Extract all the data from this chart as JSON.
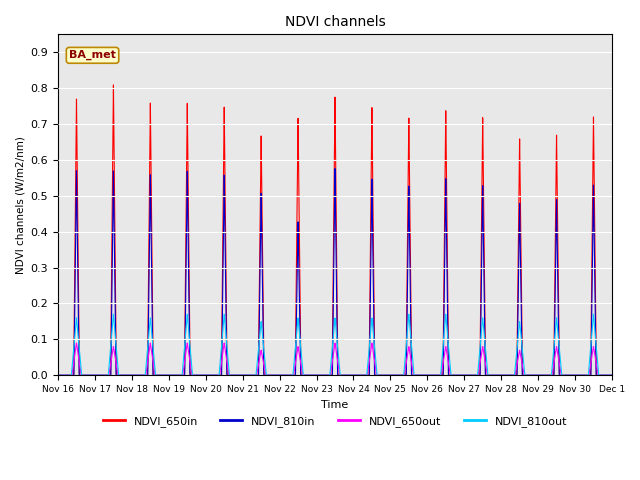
{
  "title": "NDVI channels",
  "ylabel": "NDVI channels (W/m2/nm)",
  "xlabel": "Time",
  "annotation": "BA_met",
  "ylim": [
    0.0,
    0.95
  ],
  "yticks": [
    0.0,
    0.1,
    0.2,
    0.3,
    0.4,
    0.5,
    0.6,
    0.7,
    0.8,
    0.9
  ],
  "colors": {
    "NDVI_650in": "#FF0000",
    "NDVI_810in": "#0000CC",
    "NDVI_650out": "#FF00FF",
    "NDVI_810out": "#00CCFF"
  },
  "peak_650in": [
    0.77,
    0.81,
    0.76,
    0.76,
    0.75,
    0.67,
    0.72,
    0.78,
    0.75,
    0.72,
    0.74,
    0.72,
    0.66,
    0.67,
    0.72
  ],
  "peak_810in": [
    0.57,
    0.57,
    0.56,
    0.57,
    0.56,
    0.51,
    0.43,
    0.58,
    0.55,
    0.53,
    0.55,
    0.53,
    0.48,
    0.49,
    0.53
  ],
  "peak_650out": [
    0.09,
    0.08,
    0.09,
    0.09,
    0.09,
    0.07,
    0.08,
    0.09,
    0.09,
    0.08,
    0.08,
    0.08,
    0.07,
    0.08,
    0.08
  ],
  "peak_810out": [
    0.16,
    0.17,
    0.16,
    0.17,
    0.17,
    0.15,
    0.16,
    0.16,
    0.16,
    0.17,
    0.17,
    0.16,
    0.15,
    0.16,
    0.17
  ],
  "bg_color": "#E8E8E8",
  "face_color": "#FFFFFF",
  "xtick_labels": [
    "Nov 16",
    "Nov 17",
    "Nov 18",
    "Nov 19",
    "Nov 20",
    "Nov 21",
    "Nov 22",
    "Nov 23",
    "Nov 24",
    "Nov 25",
    "Nov 26",
    "Nov 27",
    "Nov 28",
    "Nov 29",
    "Nov 30",
    "Dec 1"
  ],
  "figsize": [
    6.4,
    4.8
  ],
  "dpi": 100
}
